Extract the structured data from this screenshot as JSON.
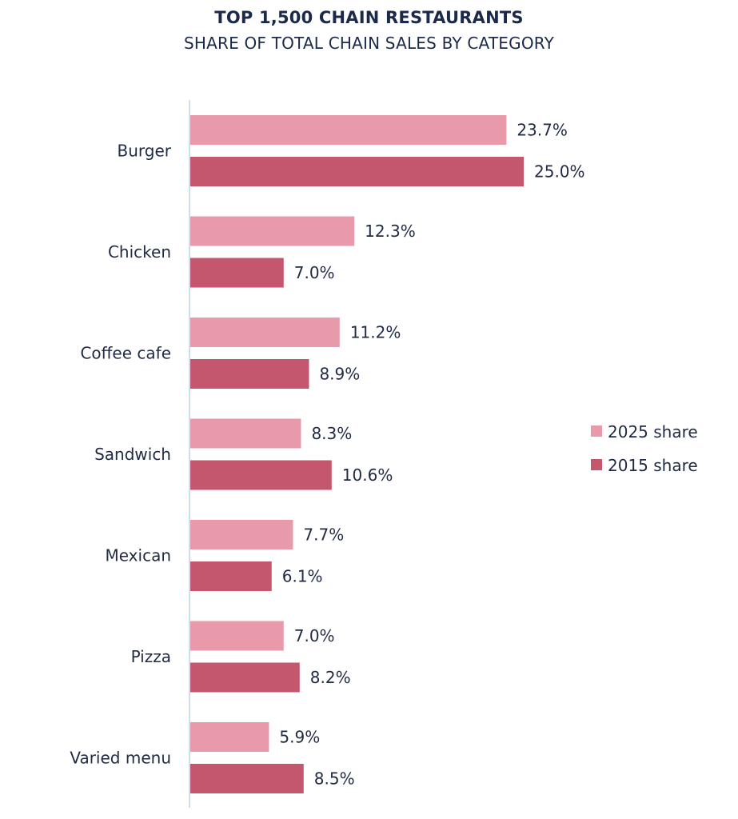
{
  "chart_data": {
    "type": "bar",
    "orientation": "horizontal",
    "title": "TOP 1,500 CHAIN RESTAURANTS",
    "subtitle": "SHARE OF TOTAL CHAIN SALES BY CATEGORY",
    "categories": [
      "Burger",
      "Chicken",
      "Coffee cafe",
      "Sandwich",
      "Mexican",
      "Pizza",
      "Varied menu"
    ],
    "series": [
      {
        "name": "2025 share",
        "color": "#e899aa",
        "values": [
          23.7,
          12.3,
          11.2,
          8.3,
          7.7,
          7.0,
          5.9
        ],
        "labels": [
          "23.7%",
          "12.3%",
          "11.2%",
          "8.3%",
          "7.7%",
          "7.0%",
          "5.9%"
        ]
      },
      {
        "name": "2015 share",
        "color": "#c4566d",
        "values": [
          25.0,
          7.0,
          8.9,
          10.6,
          6.1,
          8.2,
          8.5
        ],
        "labels": [
          "25.0%",
          "7.0%",
          "8.9%",
          "10.6%",
          "6.1%",
          "8.2%",
          "8.5%"
        ]
      }
    ],
    "xlim": [
      0,
      25
    ],
    "xlabel": "",
    "ylabel": "",
    "grid": false,
    "legend_position": "right",
    "axis_color": "#bcd4ee"
  }
}
